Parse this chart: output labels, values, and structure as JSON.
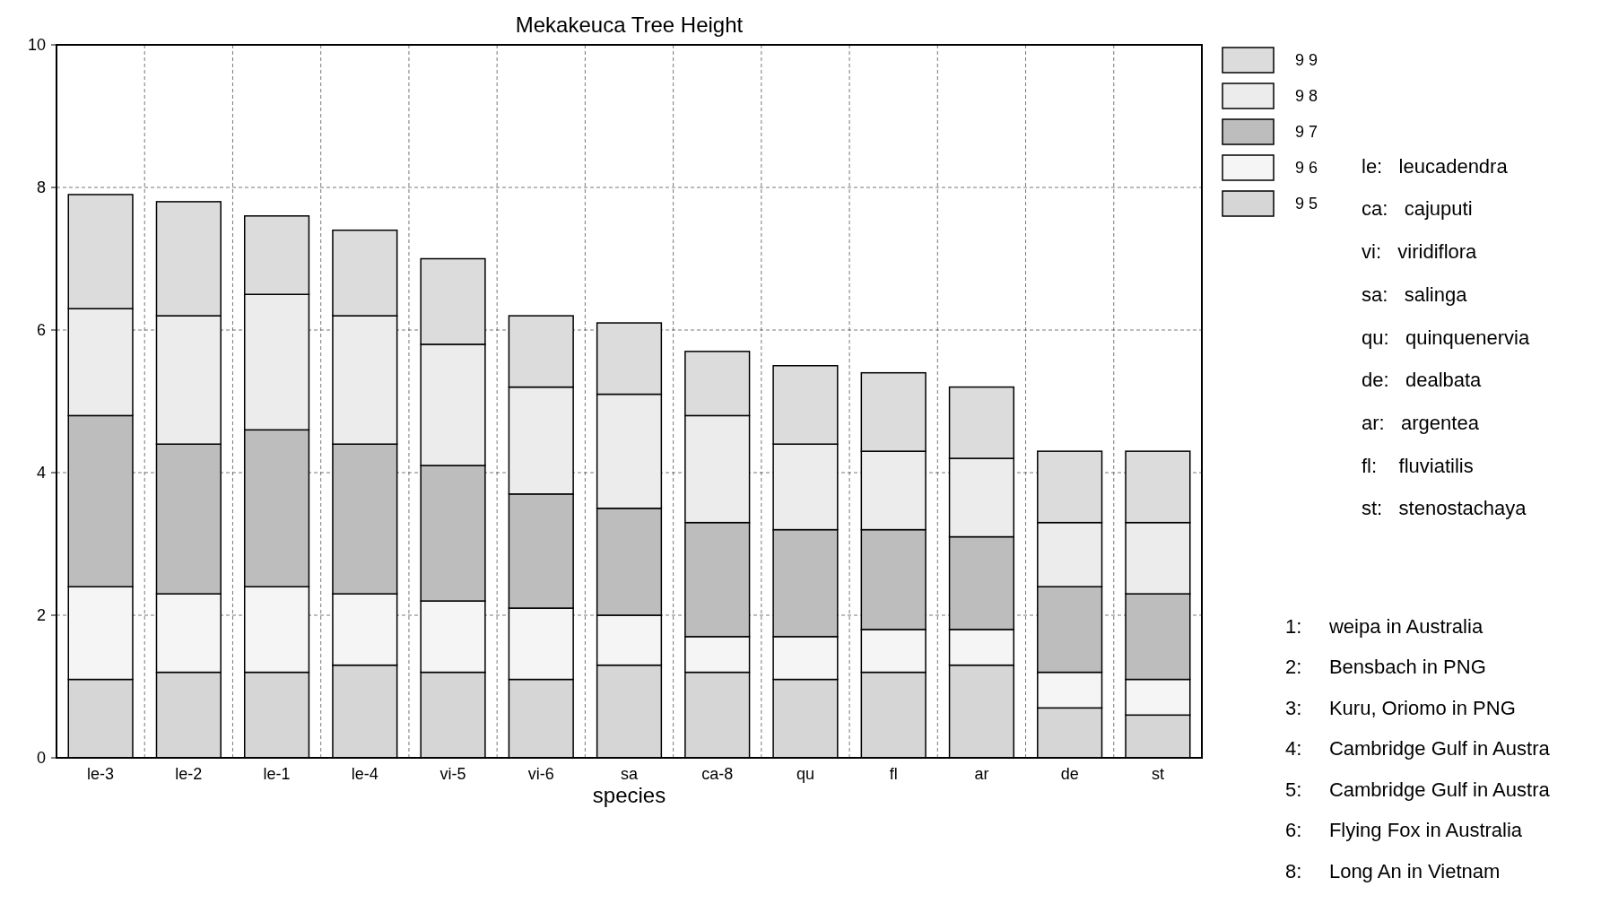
{
  "chart_data": {
    "type": "bar",
    "stacked": true,
    "title": "Mekakeuca Tree Height",
    "xlabel": "species",
    "categories": [
      "le-3",
      "le-2",
      "le-1",
      "le-4",
      "vi-5",
      "vi-6",
      "sa",
      "ca-8",
      "qu",
      "fl",
      "ar",
      "de",
      "st"
    ],
    "series": [
      {
        "name": "9 5",
        "color": "#d6d6d6",
        "values": [
          1.1,
          1.2,
          1.2,
          1.3,
          1.2,
          1.1,
          1.3,
          1.2,
          1.1,
          1.2,
          1.3,
          0.7,
          0.6
        ]
      },
      {
        "name": "9 6",
        "color": "#f5f5f5",
        "values": [
          1.3,
          1.1,
          1.2,
          1.0,
          1.0,
          1.0,
          0.7,
          0.5,
          0.6,
          0.6,
          0.5,
          0.5,
          0.5
        ]
      },
      {
        "name": "9 7",
        "color": "#bdbdbd",
        "values": [
          2.4,
          2.1,
          2.2,
          2.1,
          1.9,
          1.6,
          1.5,
          1.6,
          1.5,
          1.4,
          1.3,
          1.2,
          1.2
        ]
      },
      {
        "name": "9 8",
        "color": "#ececec",
        "values": [
          1.5,
          1.8,
          1.9,
          1.8,
          1.7,
          1.5,
          1.6,
          1.5,
          1.2,
          1.1,
          1.1,
          0.9,
          1.0
        ]
      },
      {
        "name": "9 9",
        "color": "#dcdcdc",
        "values": [
          1.6,
          1.6,
          1.1,
          1.2,
          1.2,
          1.0,
          1.0,
          0.9,
          1.1,
          1.1,
          1.0,
          1.0,
          1.0
        ]
      }
    ],
    "ylim": [
      0,
      10
    ],
    "yticks": [
      0,
      2,
      4,
      6,
      8,
      10
    ],
    "grid": true,
    "legend": "right",
    "annotations": [
      "le:   leucadendra",
      "ca:   cajuputi",
      "vi:   viridiflora",
      "sa:   salinga",
      "qu:   quinquenervia",
      "de:   dealbata",
      "ar:   argentea",
      "fl:    fluviatilis",
      "st:   stenostachaya",
      "1:     weipa in Australia",
      "2:     Bensbach in PNG",
      "3:     Kuru, Oriomo in PNG",
      "4:     Cambridge Gulf in Austra",
      "5:     Cambridge Gulf in Austra",
      "6:     Flying Fox in Australia",
      "8:     Long An in Vietnam"
    ]
  }
}
